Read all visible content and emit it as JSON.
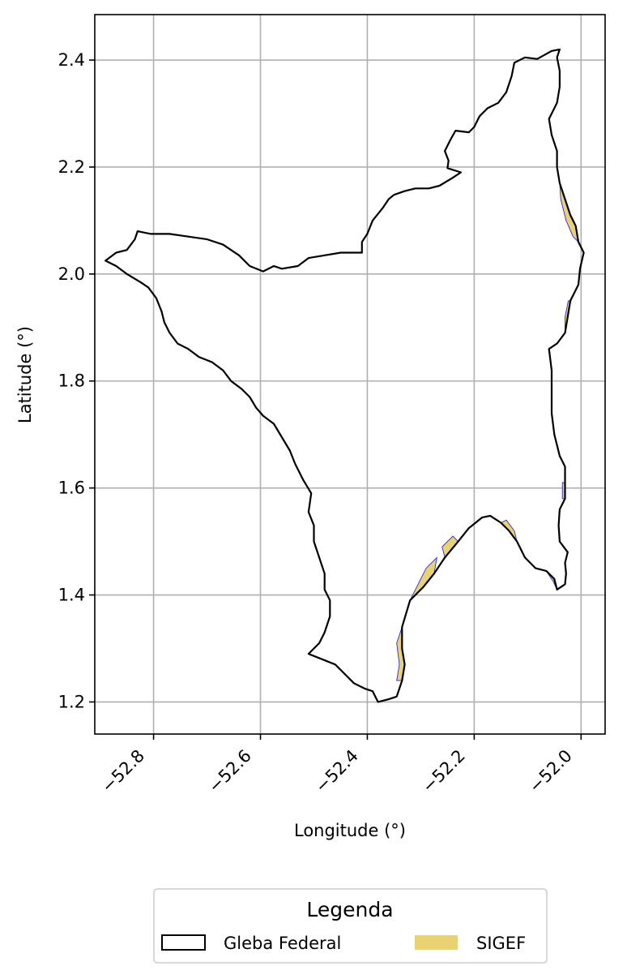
{
  "chart_data": {
    "type": "map",
    "xlabel": "Longitude (°)",
    "ylabel": "Latitude (°)",
    "xlim": [
      -52.91,
      -51.955
    ],
    "ylim": [
      1.14,
      2.485
    ],
    "grid": true,
    "x_ticks": [
      -52.8,
      -52.6,
      -52.4,
      -52.2,
      -52.0
    ],
    "x_tick_labels": [
      "−52.8",
      "−52.6",
      "−52.4",
      "−52.2",
      "−52.0"
    ],
    "y_ticks": [
      1.2,
      1.4,
      1.6,
      1.8,
      2.0,
      2.2,
      2.4
    ],
    "y_tick_labels": [
      "1.2",
      "1.4",
      "1.6",
      "1.8",
      "2.0",
      "2.2",
      "2.4"
    ],
    "legend": {
      "title": "Legenda",
      "placement": "bottom-center, below chart",
      "entries": [
        {
          "label": "Gleba Federal",
          "style": "outline",
          "color": "#000000"
        },
        {
          "label": "SIGEF",
          "style": "fill",
          "color": "#e8d274"
        }
      ]
    },
    "series": [
      {
        "name": "Gleba Federal",
        "style": "outline",
        "color": "#000000",
        "points": [
          [
            -52.055,
            2.417
          ],
          [
            -52.082,
            2.402
          ],
          [
            -52.105,
            2.405
          ],
          [
            -52.125,
            2.395
          ],
          [
            -52.13,
            2.37
          ],
          [
            -52.14,
            2.34
          ],
          [
            -52.155,
            2.32
          ],
          [
            -52.175,
            2.31
          ],
          [
            -52.19,
            2.295
          ],
          [
            -52.2,
            2.275
          ],
          [
            -52.21,
            2.265
          ],
          [
            -52.235,
            2.268
          ],
          [
            -52.245,
            2.25
          ],
          [
            -52.255,
            2.23
          ],
          [
            -52.248,
            2.212
          ],
          [
            -52.25,
            2.198
          ],
          [
            -52.225,
            2.19
          ],
          [
            -52.24,
            2.18
          ],
          [
            -52.265,
            2.165
          ],
          [
            -52.285,
            2.16
          ],
          [
            -52.31,
            2.16
          ],
          [
            -52.33,
            2.155
          ],
          [
            -52.35,
            2.148
          ],
          [
            -52.36,
            2.14
          ],
          [
            -52.37,
            2.125
          ],
          [
            -52.39,
            2.1
          ],
          [
            -52.4,
            2.075
          ],
          [
            -52.41,
            2.06
          ],
          [
            -52.41,
            2.04
          ],
          [
            -52.43,
            2.04
          ],
          [
            -52.45,
            2.04
          ],
          [
            -52.48,
            2.035
          ],
          [
            -52.51,
            2.03
          ],
          [
            -52.53,
            2.015
          ],
          [
            -52.56,
            2.01
          ],
          [
            -52.575,
            2.015
          ],
          [
            -52.595,
            2.005
          ],
          [
            -52.62,
            2.015
          ],
          [
            -52.64,
            2.035
          ],
          [
            -52.67,
            2.055
          ],
          [
            -52.7,
            2.065
          ],
          [
            -52.735,
            2.07
          ],
          [
            -52.77,
            2.075
          ],
          [
            -52.805,
            2.075
          ],
          [
            -52.83,
            2.08
          ],
          [
            -52.835,
            2.065
          ],
          [
            -52.85,
            2.045
          ],
          [
            -52.87,
            2.04
          ],
          [
            -52.89,
            2.025
          ],
          [
            -52.87,
            2.015
          ],
          [
            -52.85,
            2.0
          ],
          [
            -52.825,
            1.985
          ],
          [
            -52.81,
            1.975
          ],
          [
            -52.795,
            1.955
          ],
          [
            -52.785,
            1.93
          ],
          [
            -52.78,
            1.91
          ],
          [
            -52.77,
            1.89
          ],
          [
            -52.755,
            1.87
          ],
          [
            -52.735,
            1.86
          ],
          [
            -52.715,
            1.845
          ],
          [
            -52.69,
            1.835
          ],
          [
            -52.67,
            1.82
          ],
          [
            -52.655,
            1.8
          ],
          [
            -52.635,
            1.785
          ],
          [
            -52.62,
            1.77
          ],
          [
            -52.608,
            1.75
          ],
          [
            -52.595,
            1.735
          ],
          [
            -52.575,
            1.72
          ],
          [
            -52.56,
            1.695
          ],
          [
            -52.545,
            1.67
          ],
          [
            -52.535,
            1.645
          ],
          [
            -52.52,
            1.615
          ],
          [
            -52.505,
            1.59
          ],
          [
            -52.51,
            1.555
          ],
          [
            -52.5,
            1.53
          ],
          [
            -52.5,
            1.5
          ],
          [
            -52.49,
            1.47
          ],
          [
            -52.48,
            1.44
          ],
          [
            -52.48,
            1.41
          ],
          [
            -52.47,
            1.39
          ],
          [
            -52.47,
            1.36
          ],
          [
            -52.48,
            1.33
          ],
          [
            -52.49,
            1.31
          ],
          [
            -52.51,
            1.29
          ],
          [
            -52.485,
            1.28
          ],
          [
            -52.46,
            1.27
          ],
          [
            -52.44,
            1.25
          ],
          [
            -52.425,
            1.235
          ],
          [
            -52.405,
            1.225
          ],
          [
            -52.39,
            1.22
          ],
          [
            -52.38,
            1.2
          ],
          [
            -52.36,
            1.205
          ],
          [
            -52.345,
            1.21
          ],
          [
            -52.335,
            1.24
          ],
          [
            -52.33,
            1.27
          ],
          [
            -52.335,
            1.3
          ],
          [
            -52.335,
            1.34
          ],
          [
            -52.32,
            1.39
          ],
          [
            -52.295,
            1.415
          ],
          [
            -52.275,
            1.44
          ],
          [
            -52.255,
            1.47
          ],
          [
            -52.23,
            1.5
          ],
          [
            -52.21,
            1.525
          ],
          [
            -52.185,
            1.545
          ],
          [
            -52.17,
            1.548
          ],
          [
            -52.15,
            1.535
          ],
          [
            -52.135,
            1.52
          ],
          [
            -52.12,
            1.5
          ],
          [
            -52.105,
            1.47
          ],
          [
            -52.085,
            1.45
          ],
          [
            -52.065,
            1.445
          ],
          [
            -52.05,
            1.43
          ],
          [
            -52.045,
            1.41
          ],
          [
            -52.03,
            1.42
          ],
          [
            -52.028,
            1.44
          ],
          [
            -52.03,
            1.46
          ],
          [
            -52.025,
            1.48
          ],
          [
            -52.04,
            1.5
          ],
          [
            -52.042,
            1.53
          ],
          [
            -52.04,
            1.56
          ],
          [
            -52.03,
            1.58
          ],
          [
            -52.03,
            1.61
          ],
          [
            -52.03,
            1.64
          ],
          [
            -52.04,
            1.66
          ],
          [
            -52.05,
            1.7
          ],
          [
            -52.055,
            1.74
          ],
          [
            -52.055,
            1.78
          ],
          [
            -52.055,
            1.82
          ],
          [
            -52.06,
            1.86
          ],
          [
            -52.045,
            1.87
          ],
          [
            -52.03,
            1.89
          ],
          [
            -52.025,
            1.92
          ],
          [
            -52.02,
            1.95
          ],
          [
            -52.005,
            1.98
          ],
          [
            -52.002,
            2.01
          ],
          [
            -51.995,
            2.04
          ],
          [
            -52.005,
            2.06
          ],
          [
            -52.01,
            2.09
          ],
          [
            -52.02,
            2.11
          ],
          [
            -52.03,
            2.14
          ],
          [
            -52.04,
            2.17
          ],
          [
            -52.045,
            2.2
          ],
          [
            -52.045,
            2.23
          ],
          [
            -52.055,
            2.26
          ],
          [
            -52.06,
            2.29
          ],
          [
            -52.045,
            2.32
          ],
          [
            -52.04,
            2.35
          ],
          [
            -52.04,
            2.38
          ],
          [
            -52.045,
            2.405
          ],
          [
            -52.04,
            2.42
          ],
          [
            -52.055,
            2.417
          ]
        ]
      },
      {
        "name": "SIGEF",
        "style": "fill",
        "color": "#e8d274",
        "parcels": [
          [
            [
              -52.335,
              1.24
            ],
            [
              -52.33,
              1.27
            ],
            [
              -52.335,
              1.3
            ],
            [
              -52.335,
              1.34
            ],
            [
              -52.345,
              1.31
            ],
            [
              -52.34,
              1.27
            ],
            [
              -52.345,
              1.24
            ]
          ],
          [
            [
              -52.32,
              1.39
            ],
            [
              -52.295,
              1.415
            ],
            [
              -52.275,
              1.44
            ],
            [
              -52.27,
              1.47
            ],
            [
              -52.29,
              1.45
            ],
            [
              -52.31,
              1.41
            ]
          ],
          [
            [
              -52.255,
              1.47
            ],
            [
              -52.23,
              1.5
            ],
            [
              -52.24,
              1.51
            ],
            [
              -52.26,
              1.49
            ]
          ],
          [
            [
              -52.15,
              1.535
            ],
            [
              -52.135,
              1.52
            ],
            [
              -52.12,
              1.5
            ],
            [
              -52.125,
              1.52
            ],
            [
              -52.14,
              1.54
            ]
          ],
          [
            [
              -52.065,
              1.445
            ],
            [
              -52.05,
              1.43
            ],
            [
              -52.045,
              1.41
            ],
            [
              -52.052,
              1.425
            ],
            [
              -52.062,
              1.44
            ]
          ],
          [
            [
              -52.03,
              1.58
            ],
            [
              -52.03,
              1.61
            ],
            [
              -52.035,
              1.61
            ],
            [
              -52.035,
              1.58
            ]
          ],
          [
            [
              -52.005,
              2.06
            ],
            [
              -52.01,
              2.09
            ],
            [
              -52.02,
              2.11
            ],
            [
              -52.03,
              2.14
            ],
            [
              -52.04,
              2.17
            ],
            [
              -52.038,
              2.14
            ],
            [
              -52.028,
              2.1
            ],
            [
              -52.015,
              2.07
            ]
          ],
          [
            [
              -52.03,
              1.89
            ],
            [
              -52.025,
              1.92
            ],
            [
              -52.02,
              1.95
            ],
            [
              -52.024,
              1.95
            ],
            [
              -52.03,
              1.92
            ]
          ]
        ]
      }
    ]
  }
}
